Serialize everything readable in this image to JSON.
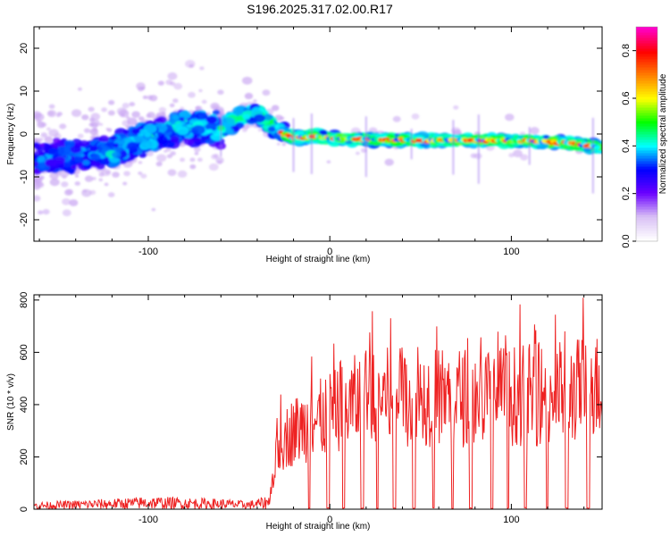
{
  "figure": {
    "title": "S196.2025.317.02.00.R17"
  },
  "chart_data": [
    {
      "type": "heatmap",
      "name": "spectrogram",
      "xlabel": "Height of straight line (km)",
      "ylabel": "Frequency (Hz)",
      "xlim": [
        -163,
        150
      ],
      "ylim": [
        -25,
        25
      ],
      "xticks": [
        -100,
        0,
        100
      ],
      "xtick_labels": [
        "-100",
        "0",
        "100"
      ],
      "yticks": [
        -20,
        -10,
        0,
        10,
        20
      ],
      "ytick_labels": [
        "-20",
        "-10",
        "0",
        "10",
        "20"
      ],
      "ridge": {
        "x": [
          -160,
          -140,
          -120,
          -100,
          -80,
          -60,
          -50,
          -40,
          -30,
          -20,
          -10,
          0,
          50,
          100,
          130,
          148
        ],
        "y": [
          -6,
          -5,
          -4,
          -1,
          2,
          1,
          4,
          5,
          1,
          -1,
          -0.5,
          -1,
          -1.5,
          -1.5,
          -2,
          -3
        ]
      },
      "colorbar": {
        "label": "Normalized spectral amplitude",
        "range": [
          0.0,
          0.9
        ],
        "ticks": [
          0.0,
          0.2,
          0.4,
          0.6,
          0.8
        ],
        "tick_labels": [
          "0.0",
          "0.2",
          "0.4",
          "0.6",
          "0.8"
        ],
        "colors": [
          "#ffffff",
          "#d8bff5",
          "#6a00ff",
          "#0000ff",
          "#00ffff",
          "#00ff00",
          "#ffff00",
          "#ff8000",
          "#ff0000",
          "#ff00c8"
        ]
      }
    },
    {
      "type": "line",
      "name": "snr",
      "xlabel": "Height of straight line (km)",
      "ylabel": "SNR (10 * v/v)",
      "xlim": [
        -163,
        150
      ],
      "ylim": [
        0,
        820
      ],
      "xticks": [
        -100,
        0,
        100
      ],
      "xtick_labels": [
        "-100",
        "0",
        "100"
      ],
      "yticks": [
        0,
        200,
        400,
        600,
        800
      ],
      "ytick_labels": [
        "0",
        "200",
        "400",
        "600",
        "800"
      ],
      "color": "#ee2222",
      "envelope": {
        "x": [
          -163,
          -120,
          -100,
          -60,
          -45,
          -33,
          -28,
          -20,
          -10,
          0,
          20,
          40,
          80,
          120,
          150
        ],
        "y": [
          30,
          45,
          55,
          45,
          35,
          60,
          250,
          300,
          330,
          360,
          430,
          430,
          430,
          440,
          470
        ]
      },
      "gaps_start_x": -12
    }
  ]
}
